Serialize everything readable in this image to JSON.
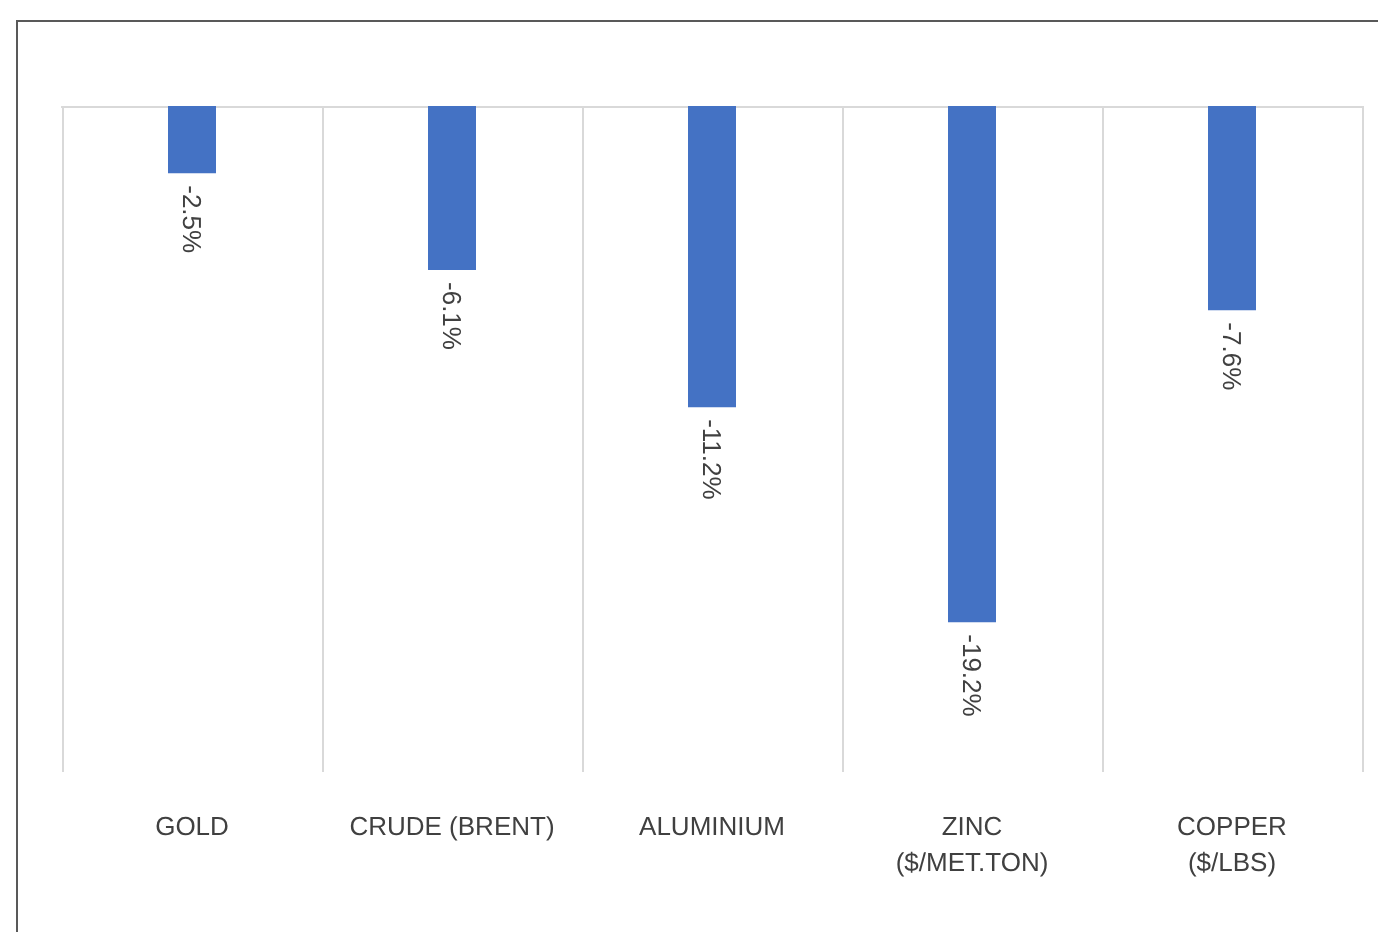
{
  "chart_data": {
    "type": "bar",
    "categories": [
      "GOLD",
      "CRUDE (BRENT)",
      "ALUMINIUM",
      "ZINC\n($/MET.TON)",
      "COPPER\n($/LBS)"
    ],
    "values": [
      -2.5,
      -6.1,
      -11.2,
      -19.2,
      -7.6
    ],
    "value_labels": [
      "-2.5%",
      "-6.1%",
      "-11.2%",
      "-19.2%",
      "-7.6%"
    ],
    "color": "#4472c4",
    "grid": "x"
  }
}
